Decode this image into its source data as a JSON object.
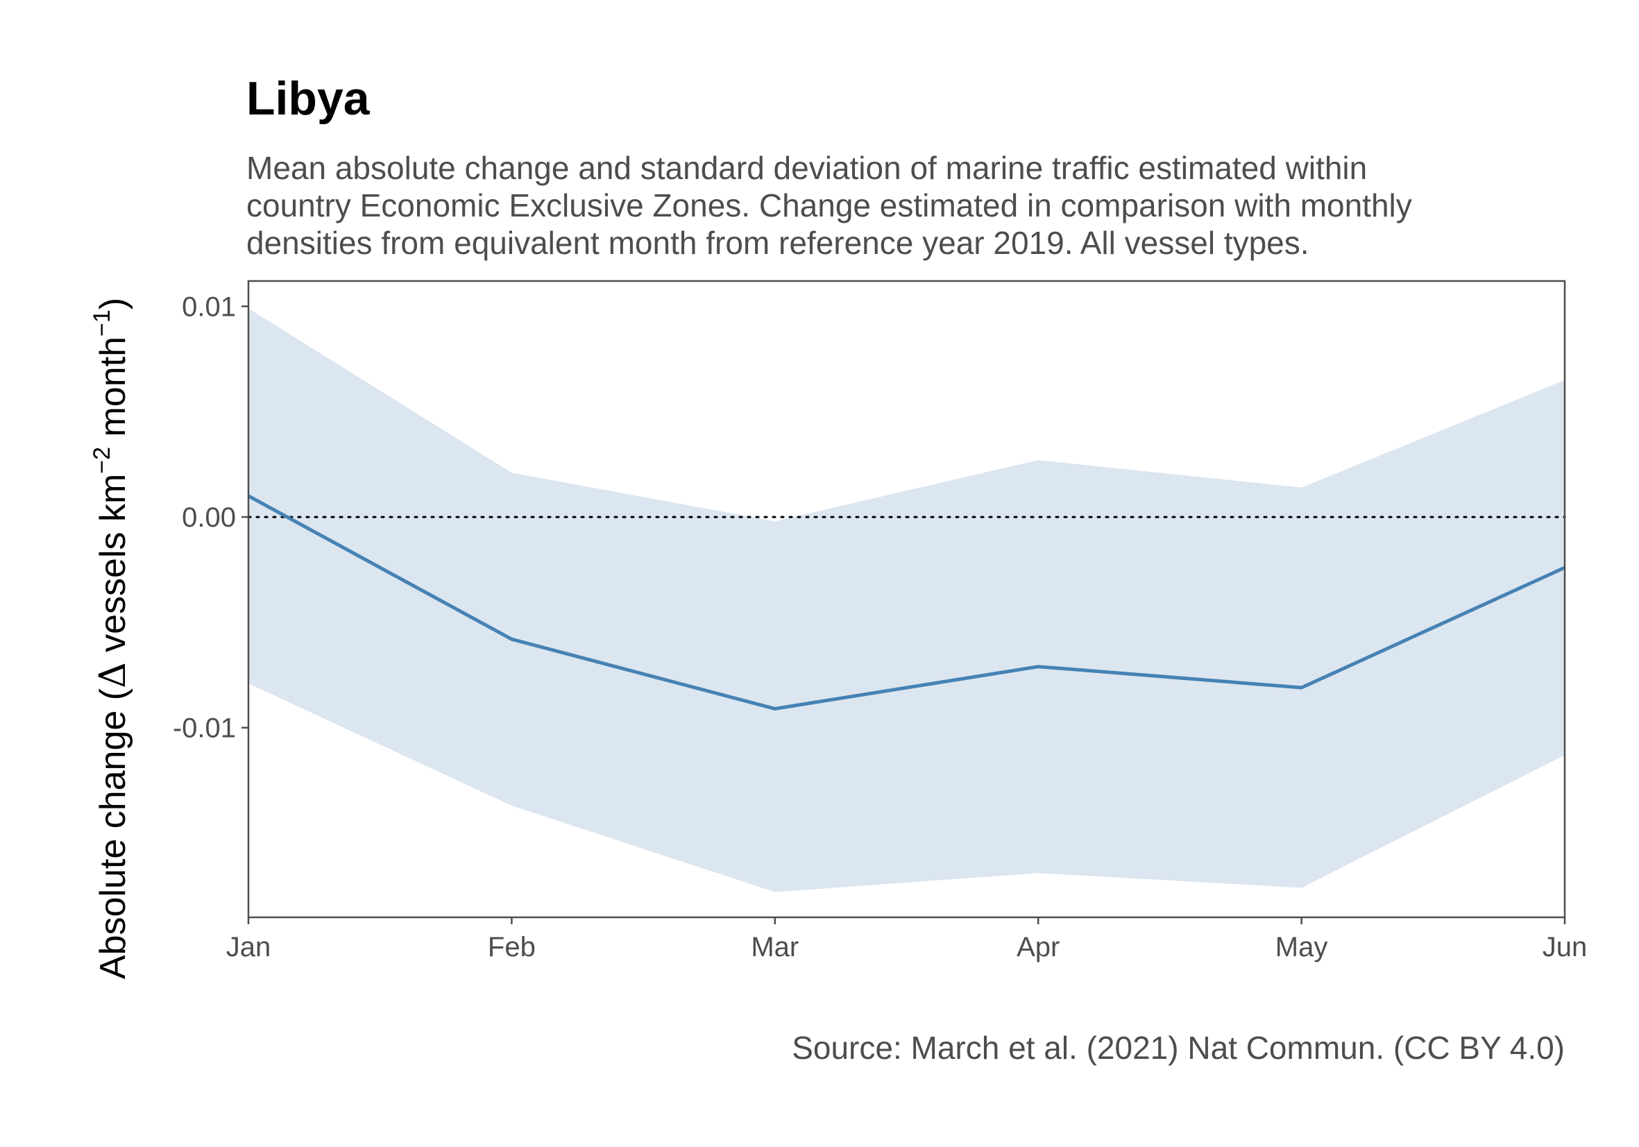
{
  "title": "Libya",
  "subtitle_lines": [
    "Mean absolute change and standard deviation of marine traffic estimated within",
    "country Economic Exclusive Zones. Change estimated in comparison with monthly",
    "densities from equivalent month from reference year 2019. All vessel types."
  ],
  "caption": "Source: March et al. (2021) Nat Commun. (CC BY 4.0)",
  "chart_data": {
    "type": "line",
    "title": "Libya",
    "categories": [
      "Jan",
      "Feb",
      "Mar",
      "Apr",
      "May",
      "Jun"
    ],
    "series": [
      {
        "values": [
          0.001,
          -0.0058,
          -0.0091,
          -0.0071,
          -0.0081,
          -0.0024
        ],
        "sd_upper": [
          0.0099,
          0.0021,
          -0.0002,
          0.0027,
          0.0014,
          0.0065
        ],
        "sd_lower": [
          -0.0079,
          -0.0137,
          -0.0178,
          -0.0169,
          -0.0176,
          -0.0113
        ]
      }
    ],
    "ylabel": {
      "prefix": "Absolute change (",
      "delta": "Δ",
      "main": " vessels km",
      "sup1": "−2",
      "mid": " month",
      "sup2": "−1",
      "suffix": ")"
    },
    "ylim": [
      -0.019,
      0.0112
    ],
    "yticks": [
      0.01,
      0.0,
      -0.01
    ],
    "ytick_labels": [
      "0.01",
      "0.00",
      "-0.01"
    ],
    "reference_line": 0,
    "colors": {
      "line": "#4682b4",
      "ribbon": "#dce6f0",
      "reference": "#000000",
      "panel_border": "#4d4d4d"
    },
    "grid": false,
    "legend": "none"
  }
}
